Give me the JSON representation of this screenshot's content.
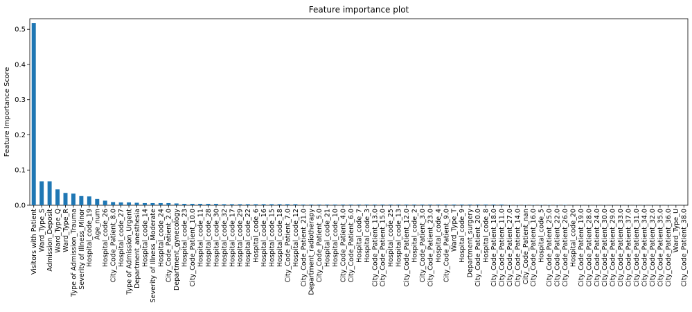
{
  "chart_data": {
    "type": "bar",
    "title": "Feature importance plot",
    "xlabel": "",
    "ylabel": "Feature Importance Score",
    "ylim": [
      0,
      0.53
    ],
    "yticks": [
      "0.0",
      "0.1",
      "0.2",
      "0.3",
      "0.4",
      "0.5"
    ],
    "bar_color": "#1f77b4",
    "grid": false,
    "categories": [
      "Visitors with Patient",
      "Ward_Type_S",
      "Admission_Deposit",
      "Ward_Type_Q",
      "Ward_Type_R",
      "Type of Admission_Trauma",
      "Severity of Illness_Minor",
      "Hospital_code_19",
      "Age_num",
      "Hospital_code_26",
      "City_Code_Patient_8.0",
      "Hospital_code_27",
      "Type of Admission_Urgent",
      "Department_anesthesia",
      "Hospital_code_14",
      "Severity of Illness_Moderate",
      "Hospital_code_24",
      "City_Code_Patient_2.0",
      "Department_gynecology",
      "Hospital_code_23",
      "City_Code_Patient_10.0",
      "Hospital_code_11",
      "Hospital_code_28",
      "Hospital_code_30",
      "Hospital_code_32",
      "Hospital_code_17",
      "Hospital_code_29",
      "Hospital_code_22",
      "Hospital_code_6",
      "Hospital_code_16",
      "Hospital_code_15",
      "Hospital_code_18",
      "City_Code_Patient_7.0",
      "Hospital_code_12",
      "City_Code_Patient_21.0",
      "Department_radiotherapy",
      "City_Code_Patient_5.0",
      "Hospital_code_21",
      "Hospital_code_10",
      "City_Code_Patient_4.0",
      "City_Code_Patient_6.0",
      "Hospital_code_7",
      "Hospital_code_3",
      "City_Code_Patient_13.0",
      "City_Code_Patient_15.0",
      "Hospital_code_25",
      "Hospital_code_13",
      "City_Code_Patient_12.0",
      "Hospital_code_2",
      "City_Code_Patient_3.0",
      "City_Code_Patient_23.0",
      "Hospital_code_4",
      "City_Code_Patient_9.0",
      "Ward_Type_T",
      "Hospital_code_9",
      "Department_surgery",
      "City_Code_Patient_20.0",
      "Hospital_code_8",
      "City_Code_Patient_18.0",
      "City_Code_Patient_11.0",
      "City_Code_Patient_27.0",
      "City_Code_Patient_14.0",
      "City_Code_Patient_nan",
      "City_Code_Patient_16.0",
      "Hospital_code_5",
      "City_Code_Patient_25.0",
      "City_Code_Patient_22.0",
      "City_Code_Patient_26.0",
      "Hospital_code_20",
      "City_Code_Patient_19.0",
      "City_Code_Patient_28.0",
      "City_Code_Patient_24.0",
      "City_Code_Patient_30.0",
      "City_Code_Patient_29.0",
      "City_Code_Patient_33.0",
      "City_Code_Patient_37.0",
      "City_Code_Patient_31.0",
      "City_Code_Patient_34.0",
      "City_Code_Patient_32.0",
      "City_Code_Patient_35.0",
      "City_Code_Patient_36.0",
      "Ward_Type_U",
      "City_Code_Patient_38.0"
    ],
    "values": [
      0.518,
      0.068,
      0.068,
      0.045,
      0.035,
      0.033,
      0.026,
      0.025,
      0.018,
      0.013,
      0.009,
      0.008,
      0.008,
      0.007,
      0.006,
      0.006,
      0.006,
      0.006,
      0.005,
      0.004,
      0.004,
      0.004,
      0.004,
      0.004,
      0.003,
      0.003,
      0.003,
      0.003,
      0.003,
      0.003,
      0.003,
      0.003,
      0.003,
      0.003,
      0.002,
      0.002,
      0.002,
      0.002,
      0.002,
      0.002,
      0.002,
      0.002,
      0.002,
      0.002,
      0.002,
      0.002,
      0.002,
      0.002,
      0.002,
      0.002,
      0.002,
      0.002,
      0.002,
      0.002,
      0.002,
      0.002,
      0.002,
      0.002,
      0.002,
      0.002,
      0.001,
      0.001,
      0.001,
      0.001,
      0.001,
      0.001,
      0.001,
      0.001,
      0.0005,
      0.0005,
      0.0005,
      0.0005,
      0.0005,
      0.0005,
      0.0005,
      0.0005,
      0.0005,
      0.0005,
      0.0005,
      0.0005,
      0.0005,
      0.0003,
      0.0002
    ]
  }
}
